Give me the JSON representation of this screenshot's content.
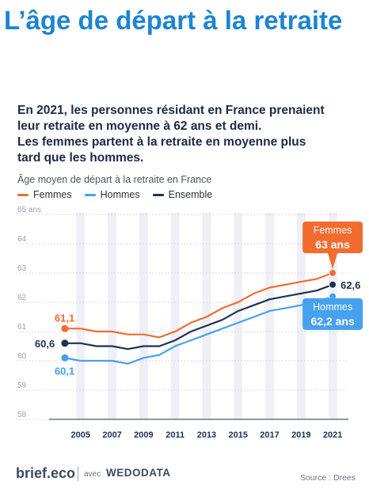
{
  "page": {
    "title": "L’âge de départ à la retraite",
    "intro_lines": [
      "En 2021, les personnes résidant en France prenaient",
      "leur retraite en moyenne à 62 ans et demi.",
      "Les femmes partent à la retraite en moyenne plus",
      "tard que les hommes."
    ],
    "footer": {
      "brand": "brief.eco",
      "avec": "avec",
      "partner": "WEDODATA",
      "source": "Source : Drees"
    }
  },
  "chart_data": {
    "type": "line",
    "title": "",
    "subtitle": "Âge moyen de départ à la retraite en France",
    "xlabel": "",
    "ylabel": "",
    "xlim": [
      2003,
      2022
    ],
    "ylim": [
      58,
      65
    ],
    "ytick_labels": [
      "58",
      "59",
      "60",
      "61",
      "62",
      "63",
      "64",
      "65 ans"
    ],
    "x_ticks": [
      2005,
      2007,
      2009,
      2011,
      2013,
      2015,
      2017,
      2019,
      2021
    ],
    "x": [
      2004,
      2005,
      2006,
      2007,
      2008,
      2009,
      2010,
      2011,
      2012,
      2013,
      2014,
      2015,
      2016,
      2017,
      2018,
      2019,
      2020,
      2021
    ],
    "series": [
      {
        "name": "Femmes",
        "color": "#f26c2e",
        "values": [
          61.1,
          61.1,
          61.0,
          61.0,
          60.9,
          60.9,
          60.8,
          61.0,
          61.3,
          61.5,
          61.8,
          62.0,
          62.3,
          62.5,
          62.6,
          62.7,
          62.8,
          63.0
        ]
      },
      {
        "name": "Hommes",
        "color": "#46a1ee",
        "values": [
          60.1,
          60.0,
          60.0,
          60.0,
          59.9,
          60.1,
          60.2,
          60.5,
          60.7,
          60.9,
          61.1,
          61.3,
          61.5,
          61.7,
          61.8,
          61.9,
          62.0,
          62.2
        ]
      },
      {
        "name": "Ensemble",
        "color": "#1e3256",
        "values": [
          60.6,
          60.6,
          60.5,
          60.5,
          60.4,
          60.5,
          60.5,
          60.7,
          61.0,
          61.2,
          61.4,
          61.7,
          61.9,
          62.1,
          62.2,
          62.3,
          62.4,
          62.6
        ]
      }
    ],
    "legend_position": "top-left",
    "grid": true,
    "annotations": {
      "femmes_start": "61,1",
      "hommes_start": "60,1",
      "ensemble_start": "60,6",
      "ensemble_end": "62,6",
      "femmes_callout_line1": "Femmes",
      "femmes_callout_line2": "63 ans",
      "hommes_callout_line1": "Hommes",
      "hommes_callout_line2": "62,2 ans"
    }
  }
}
